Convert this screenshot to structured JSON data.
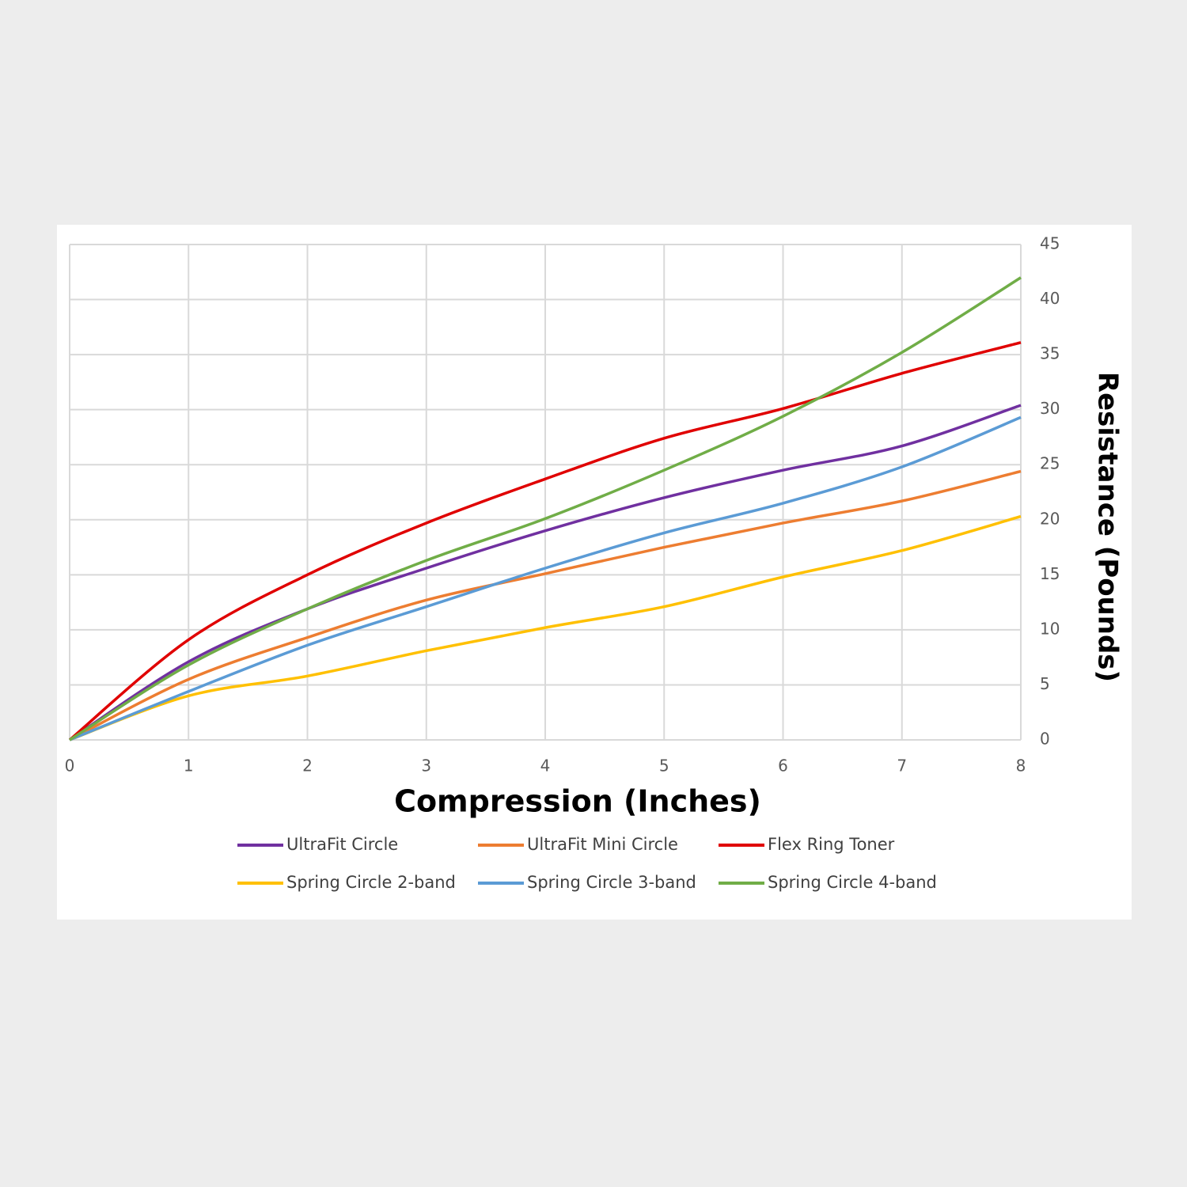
{
  "chart_data": {
    "type": "line",
    "x_label": "Compression (Inches)",
    "y_label": "Resistance (Pounds)",
    "x": [
      0,
      1,
      2,
      3,
      4,
      5,
      6,
      7,
      8
    ],
    "xlim": [
      0,
      8
    ],
    "xticks": [
      0,
      1,
      2,
      3,
      4,
      5,
      6,
      7,
      8
    ],
    "ylim": [
      0,
      45
    ],
    "yticks": [
      0,
      5,
      10,
      15,
      20,
      25,
      30,
      35,
      40,
      45
    ],
    "y_axis_side": "right",
    "grid": true,
    "legend": "bottom",
    "series": [
      {
        "name": "UltraFit Circle",
        "color": "#7030a0",
        "values": [
          0,
          7.1,
          11.9,
          15.6,
          19.0,
          22.0,
          24.5,
          26.7,
          30.4
        ]
      },
      {
        "name": "UltraFit Mini Circle",
        "color": "#ed7d31",
        "values": [
          0,
          5.5,
          9.3,
          12.7,
          15.1,
          17.5,
          19.7,
          21.7,
          24.4
        ]
      },
      {
        "name": "Flex Ring Toner",
        "color": "#e00000",
        "values": [
          0,
          9.1,
          15.0,
          19.7,
          23.7,
          27.4,
          30.1,
          33.3,
          36.1
        ]
      },
      {
        "name": "Spring Circle 2-band",
        "color": "#ffc000",
        "values": [
          0,
          4.0,
          5.8,
          8.1,
          10.2,
          12.1,
          14.8,
          17.2,
          20.3
        ]
      },
      {
        "name": "Spring Circle 3-band",
        "color": "#5b9bd5",
        "values": [
          0,
          4.4,
          8.6,
          12.1,
          15.6,
          18.8,
          21.5,
          24.8,
          29.3
        ]
      },
      {
        "name": "Spring Circle 4-band",
        "color": "#70ad47",
        "values": [
          0,
          6.8,
          11.9,
          16.3,
          20.1,
          24.5,
          29.4,
          35.2,
          42.0
        ]
      }
    ]
  }
}
